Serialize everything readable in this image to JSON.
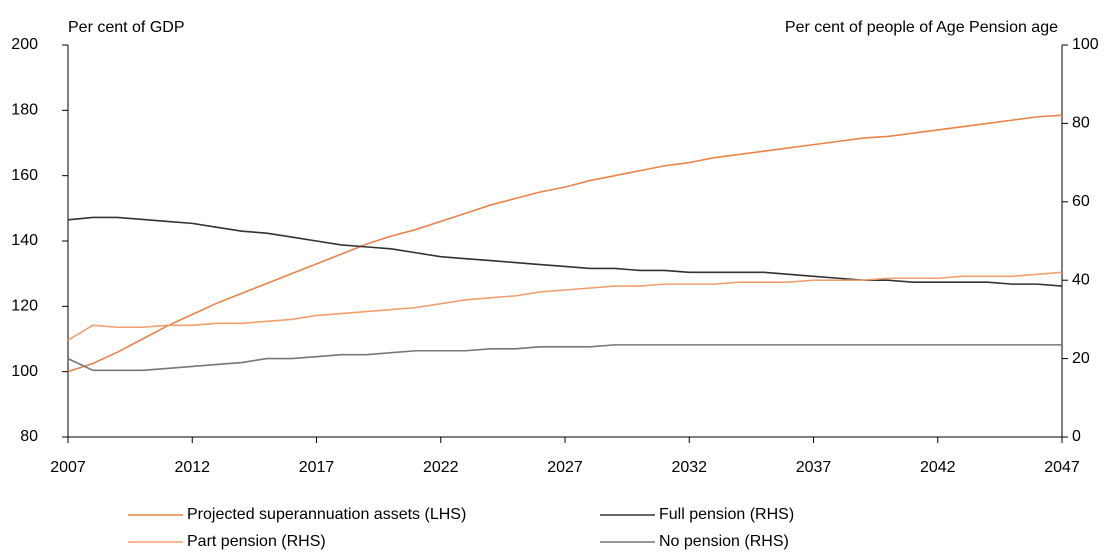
{
  "chart_data": {
    "type": "line",
    "y_label": "Per cent of GDP",
    "y2_label": "Per cent of people of Age Pension age",
    "x": [
      2007,
      2008,
      2009,
      2010,
      2011,
      2012,
      2013,
      2014,
      2015,
      2016,
      2017,
      2018,
      2019,
      2020,
      2021,
      2022,
      2023,
      2024,
      2025,
      2026,
      2027,
      2028,
      2029,
      2030,
      2031,
      2032,
      2033,
      2034,
      2035,
      2036,
      2037,
      2038,
      2039,
      2040,
      2041,
      2042,
      2043,
      2044,
      2045,
      2046,
      2047
    ],
    "xlim": [
      2007,
      2047
    ],
    "xticks": [
      2007,
      2012,
      2017,
      2022,
      2027,
      2032,
      2037,
      2042,
      2047
    ],
    "ylim": [
      80,
      200
    ],
    "yticks": [
      80,
      100,
      120,
      140,
      160,
      180,
      200
    ],
    "y2lim": [
      0,
      100
    ],
    "y2ticks": [
      0,
      20,
      40,
      60,
      80,
      100
    ],
    "grid": false,
    "series": [
      {
        "name": "Projected superannuation assets (LHS)",
        "color": "#e8844a",
        "values": [
          100,
          102.5,
          106,
          110,
          114,
          117.5,
          121,
          124,
          127,
          130,
          133,
          136,
          139,
          141.5,
          143.5,
          146,
          148.5,
          151,
          153,
          155,
          156.5,
          158.5,
          160,
          161.5,
          163,
          164,
          165.5,
          166.5,
          167.5,
          168.5,
          169.5,
          170.5,
          171.5,
          172,
          173,
          174,
          175,
          176,
          177,
          178,
          178.5
        ]
      },
      {
        "name": "Full pension (RHS)",
        "color": "#333333",
        "axis": "y2",
        "values": [
          55.4,
          56,
          56,
          55.5,
          55,
          54.5,
          53.5,
          52.5,
          52,
          51,
          50,
          49,
          48.5,
          48,
          47,
          46,
          45.5,
          45,
          44.5,
          44,
          43.5,
          43,
          43,
          42.5,
          42.5,
          42,
          42,
          42,
          42,
          41.5,
          41,
          40.5,
          40,
          40,
          39.5,
          39.5,
          39.5,
          39.5,
          39,
          39,
          38.5
        ]
      },
      {
        "name": "Part pension (RHS)",
        "color": "#f0a070",
        "axis": "y2",
        "values": [
          24.7,
          28.5,
          28,
          28,
          28.5,
          28.5,
          29,
          29,
          29.5,
          30,
          31,
          31.5,
          32,
          32.5,
          33,
          34,
          35,
          35.5,
          36,
          37,
          37.5,
          38,
          38.5,
          38.5,
          39,
          39,
          39,
          39.5,
          39.5,
          39.5,
          40,
          40,
          40,
          40.5,
          40.5,
          40.5,
          41,
          41,
          41,
          41.5,
          42
        ]
      },
      {
        "name": "No pension (RHS)",
        "color": "#777777",
        "axis": "y2",
        "values": [
          20,
          17,
          17,
          17,
          17.5,
          18,
          18.5,
          19,
          20,
          20,
          20.5,
          21,
          21,
          21.5,
          22,
          22,
          22,
          22.5,
          22.5,
          23,
          23,
          23,
          23.5,
          23.5,
          23.5,
          23.5,
          23.5,
          23.5,
          23.5,
          23.5,
          23.5,
          23.5,
          23.5,
          23.5,
          23.5,
          23.5,
          23.5,
          23.5,
          23.5,
          23.5,
          23.5
        ]
      }
    ]
  }
}
